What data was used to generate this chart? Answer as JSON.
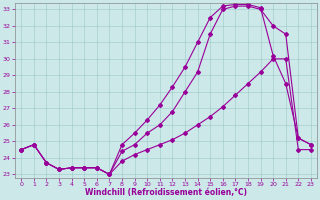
{
  "title": "",
  "xlabel": "Windchill (Refroidissement éolien,°C)",
  "ylabel": "",
  "bg_color": "#cce8e8",
  "line_color": "#990099",
  "xlim": [
    -0.5,
    23.5
  ],
  "ylim": [
    22.8,
    33.4
  ],
  "yticks": [
    23,
    24,
    25,
    26,
    27,
    28,
    29,
    30,
    31,
    32,
    33
  ],
  "xticks": [
    0,
    1,
    2,
    3,
    4,
    5,
    6,
    7,
    8,
    9,
    10,
    11,
    12,
    13,
    14,
    15,
    16,
    17,
    18,
    19,
    20,
    21,
    22,
    23
  ],
  "line1_x": [
    0,
    1,
    2,
    3,
    4,
    5,
    6,
    7,
    8,
    9,
    10,
    11,
    12,
    13,
    14,
    15,
    16,
    17,
    18,
    19,
    20,
    21,
    22,
    23
  ],
  "line1_y": [
    24.5,
    24.8,
    23.7,
    23.3,
    23.4,
    23.4,
    23.4,
    23.0,
    24.4,
    24.8,
    25.5,
    26.0,
    26.8,
    28.0,
    29.2,
    31.5,
    33.0,
    33.2,
    33.2,
    33.0,
    32.0,
    31.5,
    25.2,
    24.8
  ],
  "line2_x": [
    0,
    1,
    2,
    3,
    4,
    5,
    6,
    7,
    8,
    9,
    10,
    11,
    12,
    13,
    14,
    15,
    16,
    17,
    18,
    19,
    20,
    21,
    22,
    23
  ],
  "line2_y": [
    24.5,
    24.8,
    23.7,
    23.3,
    23.4,
    23.4,
    23.4,
    23.0,
    24.8,
    25.5,
    26.3,
    27.2,
    28.3,
    29.5,
    31.0,
    32.5,
    33.2,
    33.3,
    33.3,
    33.1,
    30.2,
    28.5,
    25.2,
    24.8
  ],
  "line3_x": [
    0,
    1,
    2,
    3,
    4,
    5,
    6,
    7,
    8,
    9,
    10,
    11,
    12,
    13,
    14,
    15,
    16,
    17,
    18,
    19,
    20,
    21,
    22,
    23
  ],
  "line3_y": [
    24.5,
    24.8,
    23.7,
    23.3,
    23.4,
    23.4,
    23.4,
    23.0,
    23.8,
    24.2,
    24.5,
    24.8,
    25.1,
    25.5,
    26.0,
    26.5,
    27.1,
    27.8,
    28.5,
    29.2,
    30.0,
    30.0,
    24.5,
    24.5
  ]
}
